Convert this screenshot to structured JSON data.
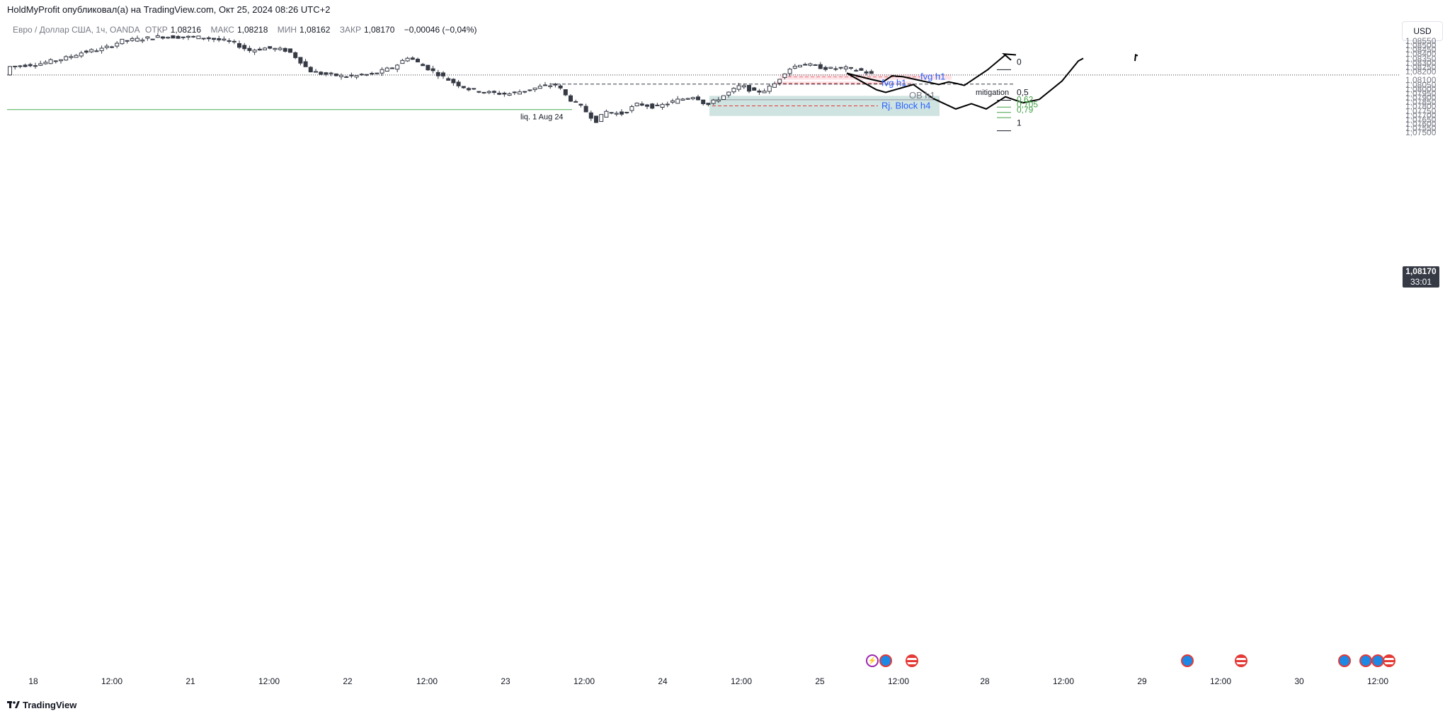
{
  "header": {
    "publisher_line": "HoldMyProfit опубликовал(а) на TradingView.com, Окт 25, 2024 08:26 UTC+2"
  },
  "legend": {
    "symbol": "Евро / Доллар США, 1ч, OANDA",
    "open_label": "ОТКР",
    "open_value": "1,08216",
    "high_label": "МАКС",
    "high_value": "1,08218",
    "low_label": "МИН",
    "low_value": "1,08162",
    "close_label": "ЗАКР",
    "close_value": "1,08170",
    "change": "−0,00046 (−0,04%)"
  },
  "currency_button": "USD",
  "last_price": {
    "value": "1,08170",
    "countdown": "33:01"
  },
  "price_axis": [
    "1,08550",
    "1,08500",
    "1,08450",
    "1,08400",
    "1,08350",
    "1,08300",
    "1,08250",
    "1,08200",
    "1,08100",
    "1,08050",
    "1,08000",
    "1,07950",
    "1,07900",
    "1,07850",
    "1,07800",
    "1,07750",
    "1,07700",
    "1,07650",
    "1,07600",
    "1,07550",
    "1,07500"
  ],
  "time_axis": [
    "18",
    "12:00",
    "21",
    "12:00",
    "22",
    "12:00",
    "23",
    "12:00",
    "24",
    "12:00",
    "25",
    "12:00",
    "28",
    "12:00",
    "29",
    "12:00",
    "30",
    "12:00"
  ],
  "annotations": {
    "fvg_upper": "fvg h1",
    "fvg_lower": "fvg h1",
    "mitigation": "mitigation",
    "ob": "OB h1",
    "rj_block": "Rj. Block h4",
    "liq": "liq. 1 Aug 24"
  },
  "fib_levels": [
    {
      "label": "0",
      "price": 1.0832
    },
    {
      "label": "0,5",
      "price": 1.0797
    },
    {
      "label": "0,62",
      "price": 1.0789
    },
    {
      "label": "0,705",
      "price": 1.0783
    },
    {
      "label": "0,79",
      "price": 1.0777
    },
    {
      "label": "1",
      "price": 1.0762
    }
  ],
  "colors": {
    "bull_body": "#ffffff",
    "bear_body": "#363a45",
    "fvg_zone": "#fce4e8",
    "ob_zone": "#cfe3e1",
    "liq_line": "#4caf50",
    "fib_green": "#43a047",
    "label_blue": "#2962ff"
  },
  "event_icons": [
    "flash-icon",
    "globe-icon",
    "us-flag-icon",
    "globe-icon",
    "us-flag-icon",
    "globe-icon",
    "globe-icon",
    "globe-icon",
    "us-flag-icon"
  ],
  "footer": {
    "brand": "TradingView"
  }
}
